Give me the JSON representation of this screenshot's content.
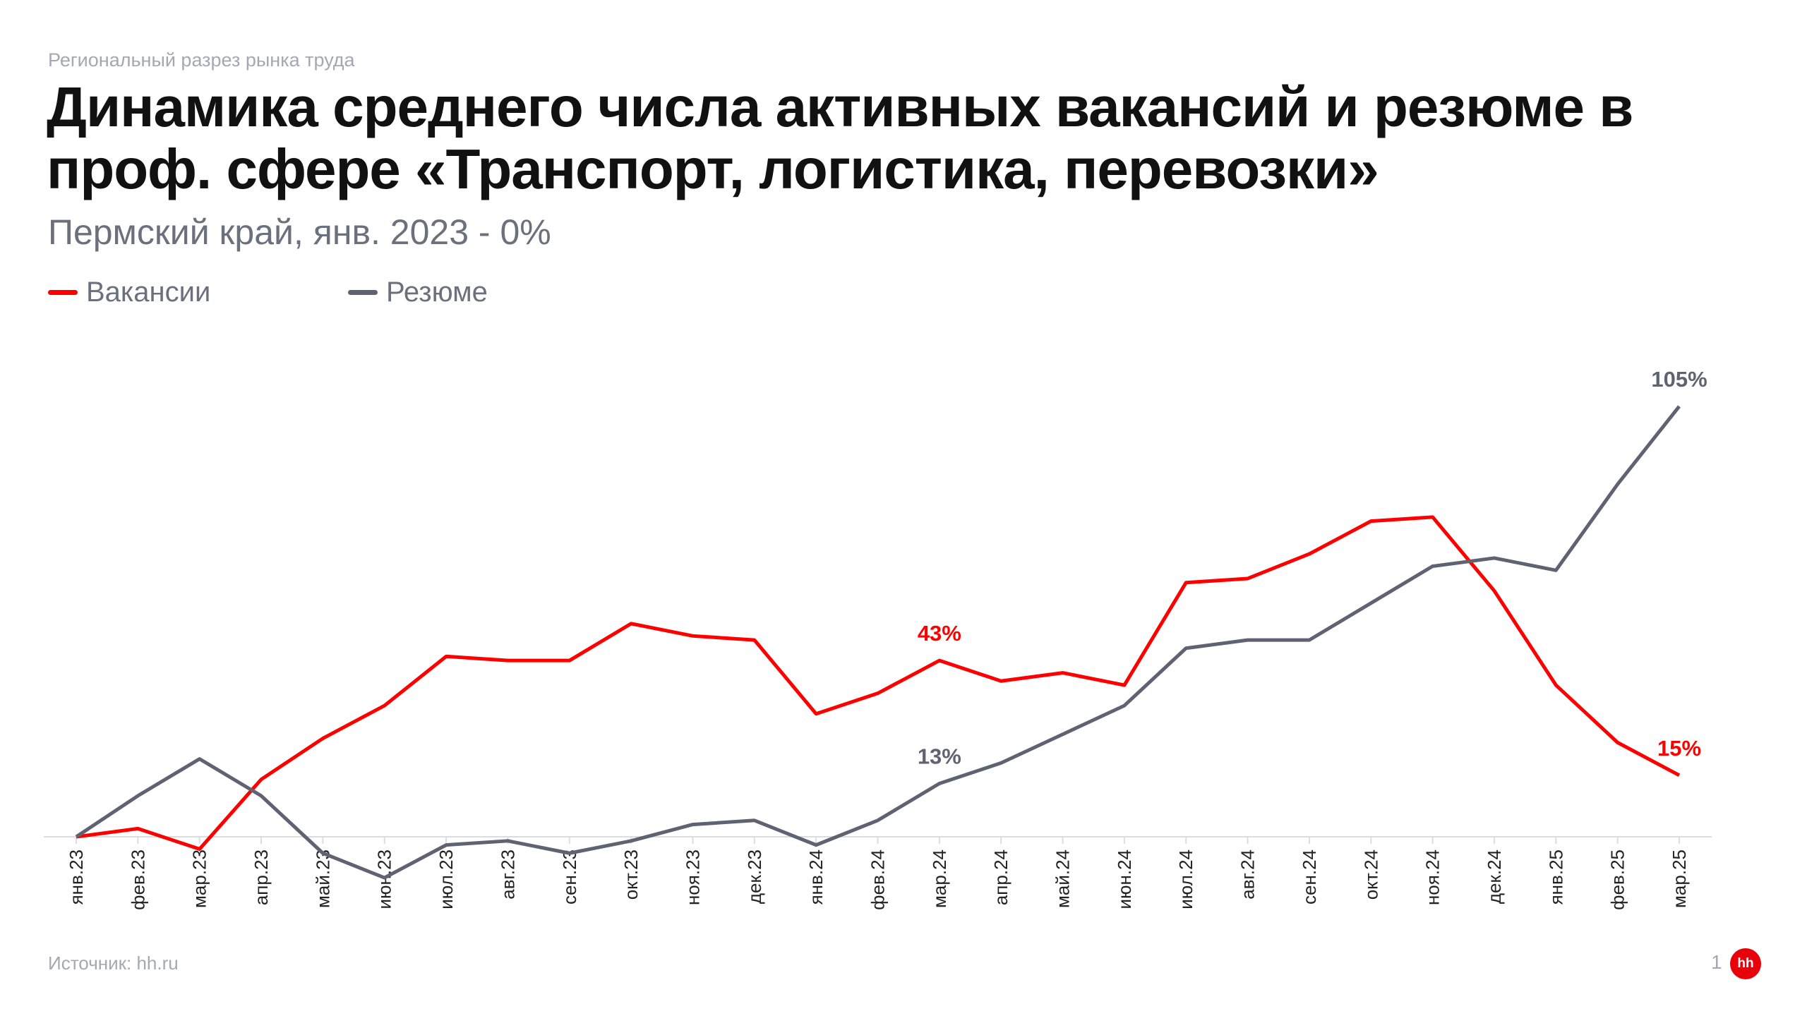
{
  "header": {
    "kicker": "Региональный разрез рынка труда",
    "title": "Динамика среднего числа активных вакансий и резюме в проф. сфере «Транспорт, логистика, перевозки»",
    "subtitle": "Пермский край, янв. 2023 - 0%"
  },
  "footer": {
    "source": "Источник: hh.ru",
    "page": "1",
    "logo": "hh"
  },
  "chart_data": {
    "type": "line",
    "title": "Динамика среднего числа активных вакансий и резюме в проф. сфере «Транспорт, логистика, перевозки»",
    "xlabel": "",
    "ylabel": "",
    "legend_position": "top-left",
    "grid": false,
    "ylim": [
      -12,
      110
    ],
    "categories": [
      "янв.23",
      "фев.23",
      "мар.23",
      "апр.23",
      "май.23",
      "июн.23",
      "июл.23",
      "авг.23",
      "сен.23",
      "окт.23",
      "ноя.23",
      "дек.23",
      "янв.24",
      "фев.24",
      "мар.24",
      "апр.24",
      "май.24",
      "июн.24",
      "июл.24",
      "авг.24",
      "сен.24",
      "окт.24",
      "ноя.24",
      "дек.24",
      "янв.25",
      "фев.25",
      "мар.25"
    ],
    "series": [
      {
        "name": "Вакансии",
        "color": "#ff0000",
        "values": [
          0,
          2,
          -3,
          14,
          24,
          32,
          44,
          43,
          43,
          52,
          49,
          48,
          30,
          35,
          43,
          38,
          40,
          37,
          62,
          63,
          69,
          77,
          78,
          60,
          37,
          23,
          15
        ]
      },
      {
        "name": "Резюме",
        "color": "#5f6371",
        "values": [
          0,
          10,
          19,
          10,
          -4,
          -10,
          -2,
          -1,
          -4,
          -1,
          3,
          4,
          -2,
          4,
          13,
          18,
          25,
          32,
          46,
          48,
          48,
          57,
          66,
          68,
          65,
          86,
          105
        ]
      }
    ],
    "annotations": [
      {
        "series": 0,
        "index": 14,
        "text": "43%"
      },
      {
        "series": 1,
        "index": 14,
        "text": "13%"
      },
      {
        "series": 1,
        "index": 26,
        "text": "105%"
      },
      {
        "series": 0,
        "index": 26,
        "text": "15%"
      }
    ]
  }
}
